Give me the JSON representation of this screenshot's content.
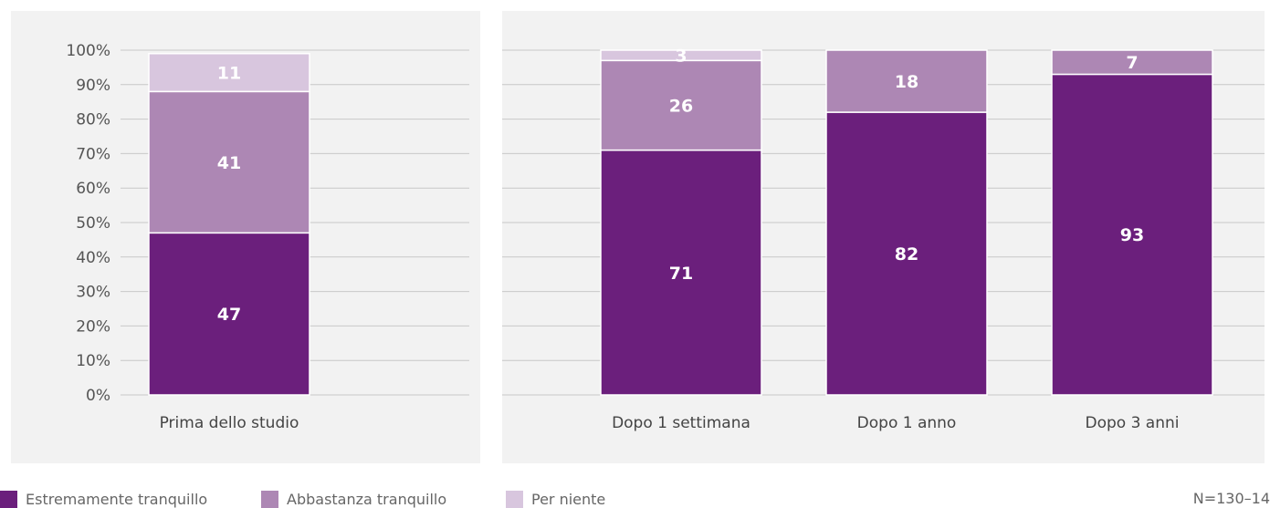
{
  "chart_data": [
    {
      "type": "bar",
      "stacked": true,
      "categories": [
        "Prima dello studio"
      ],
      "series": [
        {
          "name": "Estremamente tranquillo",
          "values": [
            47
          ],
          "color": "#6b1f7c"
        },
        {
          "name": "Abbastanza tranquillo",
          "values": [
            41
          ],
          "color": "#ad87b4"
        },
        {
          "name": "Per niente",
          "values": [
            11
          ],
          "color": "#d8c6de"
        }
      ],
      "ylim": [
        0,
        100
      ],
      "yticks": [
        "0%",
        "10%",
        "20%",
        "30%",
        "40%",
        "50%",
        "60%",
        "70%",
        "80%",
        "90%",
        "100%"
      ],
      "grid": true
    },
    {
      "type": "bar",
      "stacked": true,
      "categories": [
        "Dopo 1 settimana",
        "Dopo 1 anno",
        "Dopo 3 anni"
      ],
      "series": [
        {
          "name": "Estremamente tranquillo",
          "values": [
            71,
            82,
            93
          ],
          "color": "#6b1f7c"
        },
        {
          "name": "Abbastanza tranquillo",
          "values": [
            26,
            18,
            7
          ],
          "color": "#ad87b4"
        },
        {
          "name": "Per niente",
          "values": [
            3,
            null,
            null
          ],
          "color": "#d8c6de"
        }
      ],
      "ylim": [
        0,
        100
      ],
      "grid": true
    }
  ],
  "legend": [
    {
      "label": "Estremamente tranquillo",
      "color": "#6b1f7c"
    },
    {
      "label": "Abbastanza tranquillo",
      "color": "#ad87b4"
    },
    {
      "label": "Per niente",
      "color": "#d8c6de"
    }
  ],
  "note": "N=130–14"
}
